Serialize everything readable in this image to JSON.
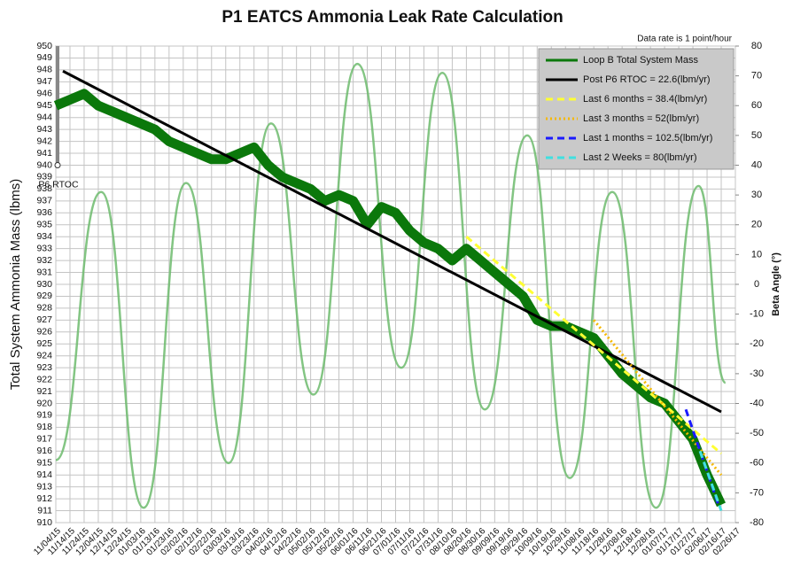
{
  "chart_data": {
    "type": "line",
    "title": "P1 EATCS Ammonia Leak Rate Calculation",
    "annotation": "Data rate is 1 point/hour",
    "ylabel": "Total System Ammonia Mass (lbms)",
    "y2label": "Beta Angle (°)",
    "grid": true,
    "legend": "top-right",
    "xlim": [
      0,
      480
    ],
    "ylim": [
      910,
      950
    ],
    "y2lim": [
      -80,
      80
    ],
    "yticks": [
      910,
      911,
      912,
      913,
      914,
      915,
      916,
      917,
      918,
      919,
      920,
      921,
      922,
      923,
      924,
      925,
      926,
      927,
      928,
      929,
      930,
      931,
      932,
      933,
      934,
      935,
      936,
      937,
      938,
      939,
      940,
      941,
      942,
      943,
      944,
      945,
      946,
      947,
      948,
      949,
      950
    ],
    "y2ticks": [
      -80,
      -70,
      -60,
      -50,
      -40,
      -30,
      -20,
      -10,
      0,
      10,
      20,
      30,
      40,
      50,
      60,
      70,
      80
    ],
    "xticks": [
      {
        "value": 0,
        "label": "11/04/15"
      },
      {
        "value": 10,
        "label": "11/14/15"
      },
      {
        "value": 20,
        "label": "11/24/15"
      },
      {
        "value": 30,
        "label": "12/04/15"
      },
      {
        "value": 40,
        "label": "12/14/15"
      },
      {
        "value": 50,
        "label": "12/24/15"
      },
      {
        "value": 60,
        "label": "01/03/16"
      },
      {
        "value": 70,
        "label": "01/13/16"
      },
      {
        "value": 80,
        "label": "01/23/16"
      },
      {
        "value": 90,
        "label": "02/02/16"
      },
      {
        "value": 100,
        "label": "02/12/16"
      },
      {
        "value": 110,
        "label": "02/22/16"
      },
      {
        "value": 120,
        "label": "03/03/16"
      },
      {
        "value": 130,
        "label": "03/13/16"
      },
      {
        "value": 140,
        "label": "03/23/16"
      },
      {
        "value": 150,
        "label": "04/02/16"
      },
      {
        "value": 160,
        "label": "04/12/16"
      },
      {
        "value": 170,
        "label": "04/22/16"
      },
      {
        "value": 180,
        "label": "05/02/16"
      },
      {
        "value": 190,
        "label": "05/12/16"
      },
      {
        "value": 200,
        "label": "05/22/16"
      },
      {
        "value": 210,
        "label": "06/01/16"
      },
      {
        "value": 220,
        "label": "06/11/16"
      },
      {
        "value": 230,
        "label": "06/21/16"
      },
      {
        "value": 240,
        "label": "07/01/16"
      },
      {
        "value": 250,
        "label": "07/11/16"
      },
      {
        "value": 260,
        "label": "07/21/16"
      },
      {
        "value": 270,
        "label": "07/31/16"
      },
      {
        "value": 280,
        "label": "08/10/16"
      },
      {
        "value": 290,
        "label": "08/20/16"
      },
      {
        "value": 300,
        "label": "08/30/16"
      },
      {
        "value": 310,
        "label": "09/09/16"
      },
      {
        "value": 320,
        "label": "09/19/16"
      },
      {
        "value": 330,
        "label": "09/29/16"
      },
      {
        "value": 340,
        "label": "10/09/16"
      },
      {
        "value": 350,
        "label": "10/19/16"
      },
      {
        "value": 360,
        "label": "10/29/16"
      },
      {
        "value": 370,
        "label": "11/08/16"
      },
      {
        "value": 380,
        "label": "11/18/16"
      },
      {
        "value": 390,
        "label": "11/28/16"
      },
      {
        "value": 400,
        "label": "12/08/16"
      },
      {
        "value": 410,
        "label": "12/18/16"
      },
      {
        "value": 420,
        "label": "12/28/16"
      },
      {
        "value": 430,
        "label": "01/07/17"
      },
      {
        "value": 440,
        "label": "01/17/17"
      },
      {
        "value": 450,
        "label": "01/27/17"
      },
      {
        "value": 460,
        "label": "02/06/17"
      },
      {
        "value": 470,
        "label": "02/16/17"
      },
      {
        "value": 480,
        "label": "02/26/17"
      }
    ],
    "marker": {
      "label": "P6 RTOC",
      "x": 0,
      "y": [
        940,
        950
      ]
    },
    "series": [
      {
        "color": "#6dbb6d",
        "axis": "y2",
        "style": "curve",
        "x": [
          0,
          32,
          62,
          92,
          122,
          152,
          182,
          213,
          244,
          273,
          303,
          333,
          363,
          393,
          424,
          454,
          473
        ],
        "values": [
          -59,
          31,
          -75,
          34,
          -60,
          54,
          -37,
          74,
          -28,
          71,
          -42,
          50,
          -65,
          31,
          -75,
          33,
          -33
        ]
      },
      {
        "name": "Loop B Total System Mass",
        "color": "#0b780b",
        "style": "band",
        "x": [
          0,
          10,
          20,
          30,
          40,
          50,
          60,
          70,
          80,
          90,
          100,
          110,
          120,
          130,
          140,
          150,
          160,
          170,
          180,
          190,
          200,
          210,
          220,
          230,
          240,
          250,
          260,
          270,
          280,
          290,
          300,
          310,
          320,
          330,
          340,
          350,
          360,
          370,
          380,
          390,
          400,
          410,
          420,
          430,
          440,
          450,
          460,
          470
        ],
        "values": [
          945,
          945.5,
          946,
          945,
          944.5,
          944,
          943.5,
          943,
          942,
          941.5,
          941,
          940.5,
          940.5,
          941,
          941.5,
          940,
          939,
          938.5,
          938,
          937,
          937.5,
          937,
          935,
          936.5,
          936,
          934.5,
          933.5,
          933,
          932,
          933,
          932,
          931,
          930,
          929,
          927,
          926.5,
          926.5,
          926,
          925.5,
          924,
          922.5,
          921.5,
          920.5,
          920,
          918.5,
          917,
          914,
          911.5
        ]
      },
      {
        "name": "Post P6 RTOC = 22.6(lbm/yr)",
        "color": "#000000",
        "style": "solid",
        "x": [
          5,
          470
        ],
        "values": [
          947.9,
          919.3
        ]
      },
      {
        "name": "Last 6 months = 38.4(lbm/yr)",
        "color": "#ffff33",
        "style": "dashed",
        "x": [
          290,
          470
        ],
        "values": [
          934,
          915.8
        ]
      },
      {
        "name": "Last 3 months = 52(lbm/yr)",
        "color": "#f5b800",
        "style": "dotted",
        "x": [
          380,
          470
        ],
        "values": [
          927,
          914
        ]
      },
      {
        "name": "Last 1 months = 102.5(lbm/yr)",
        "color": "#1a1aff",
        "style": "dashed",
        "x": [
          445,
          468
        ],
        "values": [
          919.5,
          911.5
        ]
      },
      {
        "name": "Last 2 Weeks = 80(lbm/yr)",
        "color": "#40e0e0",
        "style": "dashed",
        "x": [
          455,
          470
        ],
        "values": [
          916,
          911
        ]
      }
    ]
  }
}
